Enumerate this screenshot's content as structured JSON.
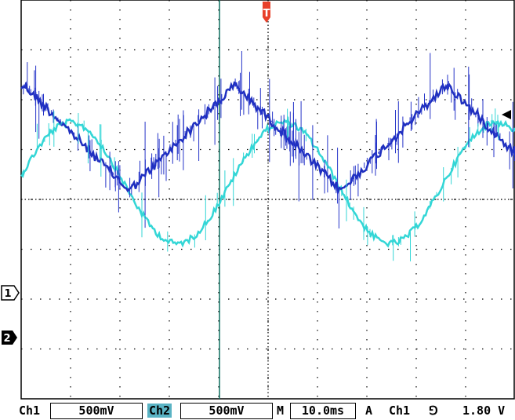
{
  "scope": {
    "trigger_marker": "T",
    "ch1_marker": "1",
    "ch2_marker": "2",
    "colors": {
      "background": "#ffffff",
      "grid": "#000000",
      "ch1_trace": "#1f2fbf",
      "ch2_trace": "#33d6d6",
      "trigger": "#e8402a"
    }
  },
  "status_bar": {
    "ch1_label": "Ch1",
    "ch1_scale": "500mV",
    "ch2_label": "Ch2",
    "ch2_scale": "500mV",
    "timebase_label": "M",
    "timebase_value": "10.0ms",
    "trigger_mode": "A",
    "trigger_source": "Ch1",
    "trigger_slope": "⅁",
    "trigger_level": "1.80 V"
  }
}
